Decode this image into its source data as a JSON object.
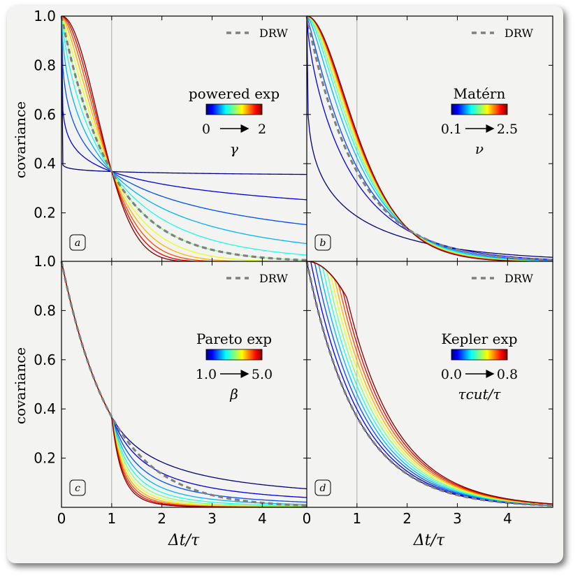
{
  "chart_data": {
    "type": "line",
    "shared_xlabel": "Δt/τ",
    "shared_ylabel": "covariance",
    "colormap": "jet",
    "reference_curve": {
      "name": "DRW",
      "style": "gray dashed",
      "color": "#808080"
    },
    "xlim": [
      0,
      4.9
    ],
    "ylim": [
      0,
      1.0
    ],
    "x_ticks": [
      "0",
      "1",
      "2",
      "3",
      "4"
    ],
    "y_ticks": [
      "0.2",
      "0.4",
      "0.6",
      "0.8",
      "1.0"
    ],
    "panels": [
      {
        "id": "a",
        "label": "a",
        "title": "powered exp",
        "range_min": "0",
        "range_max": "2",
        "param": "γ",
        "kind": "powexp",
        "param_values": [
          0.02,
          0.2,
          0.4,
          0.6,
          0.8,
          1.0,
          1.2,
          1.4,
          1.6,
          1.8,
          2.0
        ]
      },
      {
        "id": "b",
        "label": "b",
        "title": "Matérn",
        "range_min": "0.1",
        "range_max": "2.5",
        "param": "ν",
        "kind": "matern",
        "param_values": [
          0.1,
          0.34,
          0.58,
          0.82,
          1.06,
          1.3,
          1.54,
          1.78,
          2.02,
          2.26,
          2.5
        ]
      },
      {
        "id": "c",
        "label": "c",
        "title": "Pareto exp",
        "range_min": "1.0",
        "range_max": "5.0",
        "param": "β",
        "kind": "pareto",
        "param_values": [
          1.0,
          1.4,
          1.8,
          2.2,
          2.6,
          3.0,
          3.4,
          3.8,
          4.2,
          4.6,
          5.0
        ]
      },
      {
        "id": "d",
        "label": "d",
        "title": "Kepler exp",
        "range_min": "0.0",
        "range_max": "0.8",
        "param": "τcut/τ",
        "kind": "kepler",
        "param_values": [
          0.0,
          0.08,
          0.16,
          0.24,
          0.32,
          0.4,
          0.48,
          0.56,
          0.64,
          0.72,
          0.8
        ]
      }
    ]
  }
}
